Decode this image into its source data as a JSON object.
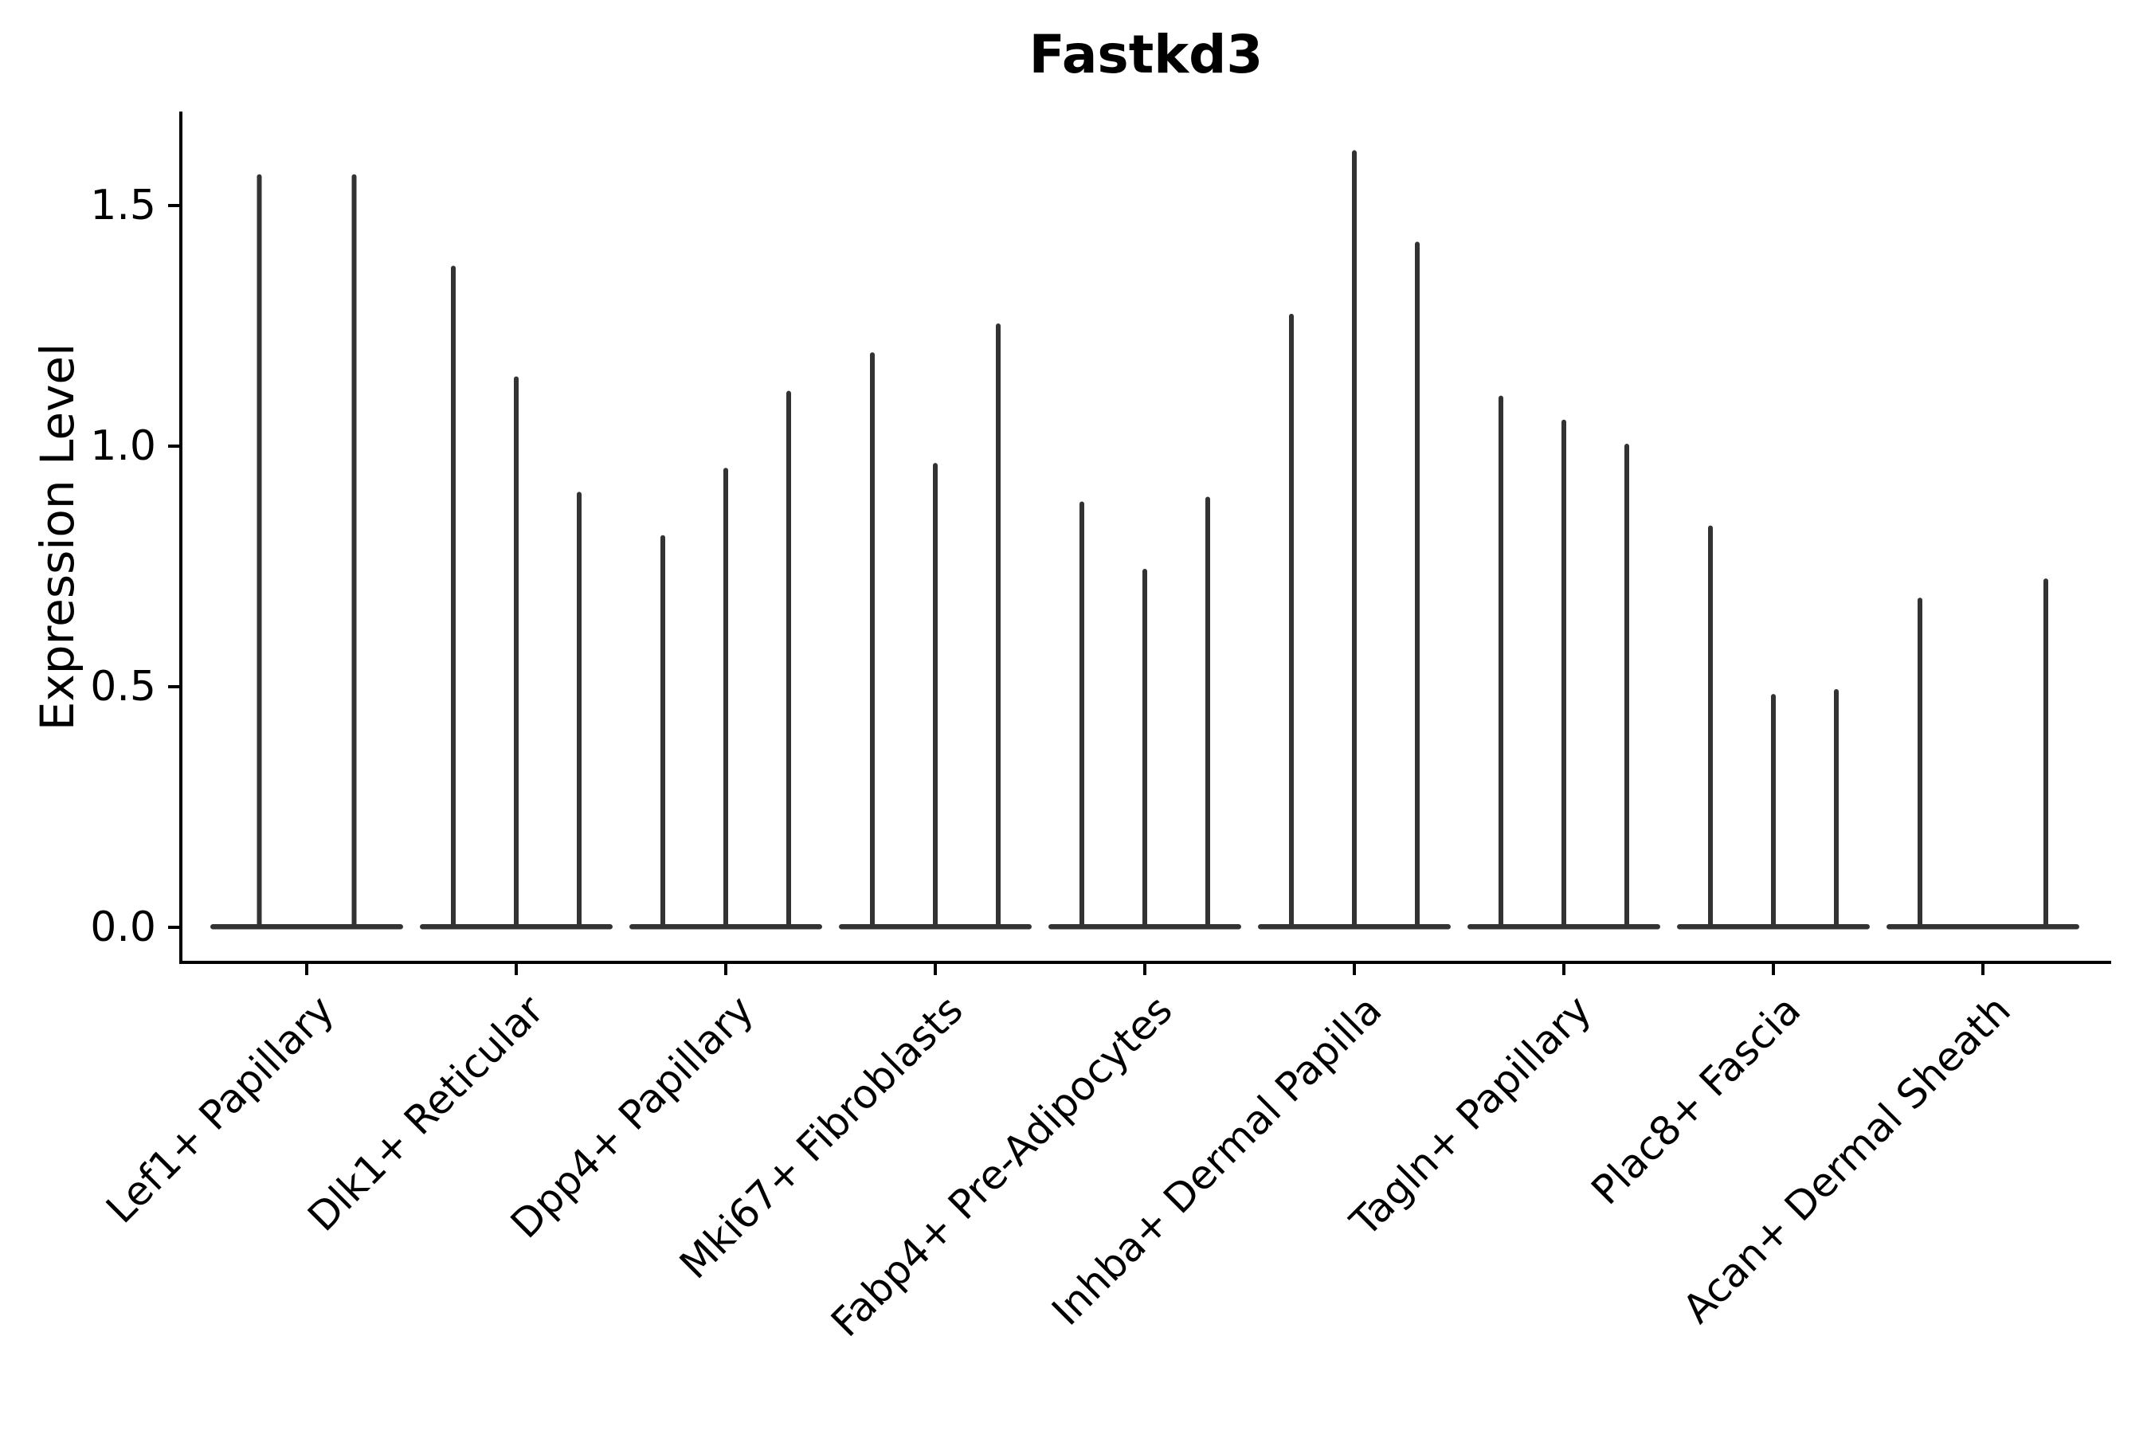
{
  "chart_data": {
    "type": "violin",
    "title": "Fastkd3",
    "ylabel": "Expression Level",
    "xlabel": "",
    "grid": false,
    "legend": "none",
    "ylim": [
      -0.07,
      1.69
    ],
    "yticks": [
      {
        "label": "0.0",
        "value": 0.0
      },
      {
        "label": "0.5",
        "value": 0.5
      },
      {
        "label": "1.0",
        "value": 1.0
      },
      {
        "label": "1.5",
        "value": 1.5
      }
    ],
    "categories": [
      "Lef1+ Papillary",
      "Dlk1+ Reticular",
      "Dpp4+ Papillary",
      "Mki67+ Fibroblasts",
      "Fabp4+ Pre-Adipocytes",
      "Inhba+ Dermal Papilla",
      "Tagln+ Papillary",
      "Plac8+ Fascia",
      "Acan+ Dermal Sheath"
    ],
    "series": [
      {
        "category": "Lef1+ Papillary",
        "violin_max_values": [
          1.56,
          1.56
        ]
      },
      {
        "category": "Dlk1+ Reticular",
        "violin_max_values": [
          1.37,
          1.14,
          0.9
        ]
      },
      {
        "category": "Dpp4+ Papillary",
        "violin_max_values": [
          0.81,
          0.95,
          1.11
        ]
      },
      {
        "category": "Mki67+ Fibroblasts",
        "violin_max_values": [
          1.19,
          0.96,
          1.25
        ]
      },
      {
        "category": "Fabp4+ Pre-Adipocytes",
        "violin_max_values": [
          0.88,
          0.74,
          0.89
        ]
      },
      {
        "category": "Inhba+ Dermal Papilla",
        "violin_max_values": [
          1.27,
          1.61,
          1.42
        ]
      },
      {
        "category": "Tagln+ Papillary",
        "violin_max_values": [
          1.1,
          1.05,
          1.0
        ]
      },
      {
        "category": "Plac8+ Fascia",
        "violin_max_values": [
          0.83,
          0.48,
          0.49
        ]
      },
      {
        "category": "Acan+ Dermal Sheath",
        "violin_max_values": [
          0.68,
          null,
          0.72
        ]
      }
    ],
    "colors": {
      "violin": "#333333",
      "axis": "#000000",
      "text": "#000000",
      "background": "#ffffff"
    }
  }
}
